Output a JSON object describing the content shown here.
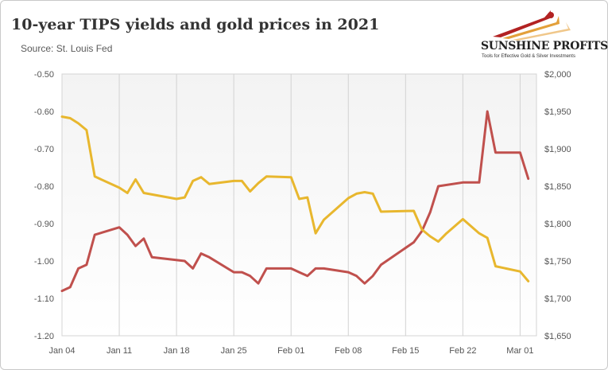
{
  "chart_data": {
    "type": "line",
    "title": "10-year TIPS yields and gold prices in 2021",
    "subtitle": "Source: St. Louis Fed",
    "x_ticks": [
      "Jan 04",
      "Jan 11",
      "Jan 18",
      "Jan 25",
      "Feb 01",
      "Feb 08",
      "Feb 15",
      "Feb 22",
      "Mar 01"
    ],
    "x_range": [
      "2021-01-04",
      "2021-03-03"
    ],
    "y_left": {
      "ticks": [
        "-0.50",
        "-0.60",
        "-0.70",
        "-0.80",
        "-0.90",
        "-1.00",
        "-1.10",
        "-1.20"
      ],
      "ylim": [
        -1.2,
        -0.5
      ]
    },
    "y_right": {
      "ticks": [
        "$2,000",
        "$1,950",
        "$1,900",
        "$1,850",
        "$1,800",
        "$1,750",
        "$1,700",
        "$1,650"
      ],
      "ylim": [
        1650,
        2000
      ]
    },
    "grid": "vertical",
    "series": [
      {
        "axis": "left",
        "color": "#c0504d",
        "points": [
          [
            "2021-01-04",
            -1.08
          ],
          [
            "2021-01-05",
            -1.07
          ],
          [
            "2021-01-06",
            -1.02
          ],
          [
            "2021-01-07",
            -1.01
          ],
          [
            "2021-01-08",
            -0.93
          ],
          [
            "2021-01-11",
            -0.91
          ],
          [
            "2021-01-12",
            -0.93
          ],
          [
            "2021-01-13",
            -0.96
          ],
          [
            "2021-01-14",
            -0.94
          ],
          [
            "2021-01-15",
            -0.99
          ],
          [
            "2021-01-19",
            -1.0
          ],
          [
            "2021-01-20",
            -1.02
          ],
          [
            "2021-01-21",
            -0.98
          ],
          [
            "2021-01-22",
            -0.99
          ],
          [
            "2021-01-25",
            -1.03
          ],
          [
            "2021-01-26",
            -1.03
          ],
          [
            "2021-01-27",
            -1.04
          ],
          [
            "2021-01-28",
            -1.06
          ],
          [
            "2021-01-29",
            -1.02
          ],
          [
            "2021-02-01",
            -1.02
          ],
          [
            "2021-02-02",
            -1.03
          ],
          [
            "2021-02-03",
            -1.04
          ],
          [
            "2021-02-04",
            -1.02
          ],
          [
            "2021-02-05",
            -1.02
          ],
          [
            "2021-02-08",
            -1.03
          ],
          [
            "2021-02-09",
            -1.04
          ],
          [
            "2021-02-10",
            -1.06
          ],
          [
            "2021-02-11",
            -1.04
          ],
          [
            "2021-02-12",
            -1.01
          ],
          [
            "2021-02-16",
            -0.95
          ],
          [
            "2021-02-17",
            -0.92
          ],
          [
            "2021-02-18",
            -0.87
          ],
          [
            "2021-02-19",
            -0.8
          ],
          [
            "2021-02-22",
            -0.79
          ],
          [
            "2021-02-23",
            -0.79
          ],
          [
            "2021-02-24",
            -0.79
          ],
          [
            "2021-02-25",
            -0.6
          ],
          [
            "2021-02-26",
            -0.71
          ],
          [
            "2021-03-01",
            -0.71
          ],
          [
            "2021-03-02",
            -0.78
          ]
        ]
      },
      {
        "axis": "right",
        "color": "#e8b72e",
        "points": [
          [
            "2021-01-04",
            1943
          ],
          [
            "2021-01-05",
            1941
          ],
          [
            "2021-01-06",
            1934
          ],
          [
            "2021-01-07",
            1925
          ],
          [
            "2021-01-08",
            1863
          ],
          [
            "2021-01-11",
            1848
          ],
          [
            "2021-01-12",
            1841
          ],
          [
            "2021-01-13",
            1859
          ],
          [
            "2021-01-14",
            1841
          ],
          [
            "2021-01-18",
            1833
          ],
          [
            "2021-01-19",
            1835
          ],
          [
            "2021-01-20",
            1857
          ],
          [
            "2021-01-21",
            1862
          ],
          [
            "2021-01-22",
            1853
          ],
          [
            "2021-01-25",
            1857
          ],
          [
            "2021-01-26",
            1857
          ],
          [
            "2021-01-27",
            1843
          ],
          [
            "2021-01-28",
            1854
          ],
          [
            "2021-01-29",
            1863
          ],
          [
            "2021-02-01",
            1862
          ],
          [
            "2021-02-02",
            1833
          ],
          [
            "2021-02-03",
            1835
          ],
          [
            "2021-02-04",
            1787
          ],
          [
            "2021-02-05",
            1805
          ],
          [
            "2021-02-08",
            1834
          ],
          [
            "2021-02-09",
            1840
          ],
          [
            "2021-02-10",
            1842
          ],
          [
            "2021-02-11",
            1840
          ],
          [
            "2021-02-12",
            1816
          ],
          [
            "2021-02-16",
            1817
          ],
          [
            "2021-02-17",
            1792
          ],
          [
            "2021-02-18",
            1783
          ],
          [
            "2021-02-19",
            1776
          ],
          [
            "2021-02-20",
            1787
          ],
          [
            "2021-02-22",
            1806
          ],
          [
            "2021-02-24",
            1787
          ],
          [
            "2021-02-25",
            1781
          ],
          [
            "2021-02-26",
            1743
          ],
          [
            "2021-03-01",
            1736
          ],
          [
            "2021-03-02",
            1723
          ]
        ]
      }
    ]
  },
  "logo": {
    "name": "SUNSHINE PROFITS",
    "tagline": "Tools for Effective Gold & Silver Investments",
    "colors": [
      "#b22222",
      "#e8a02e"
    ]
  }
}
